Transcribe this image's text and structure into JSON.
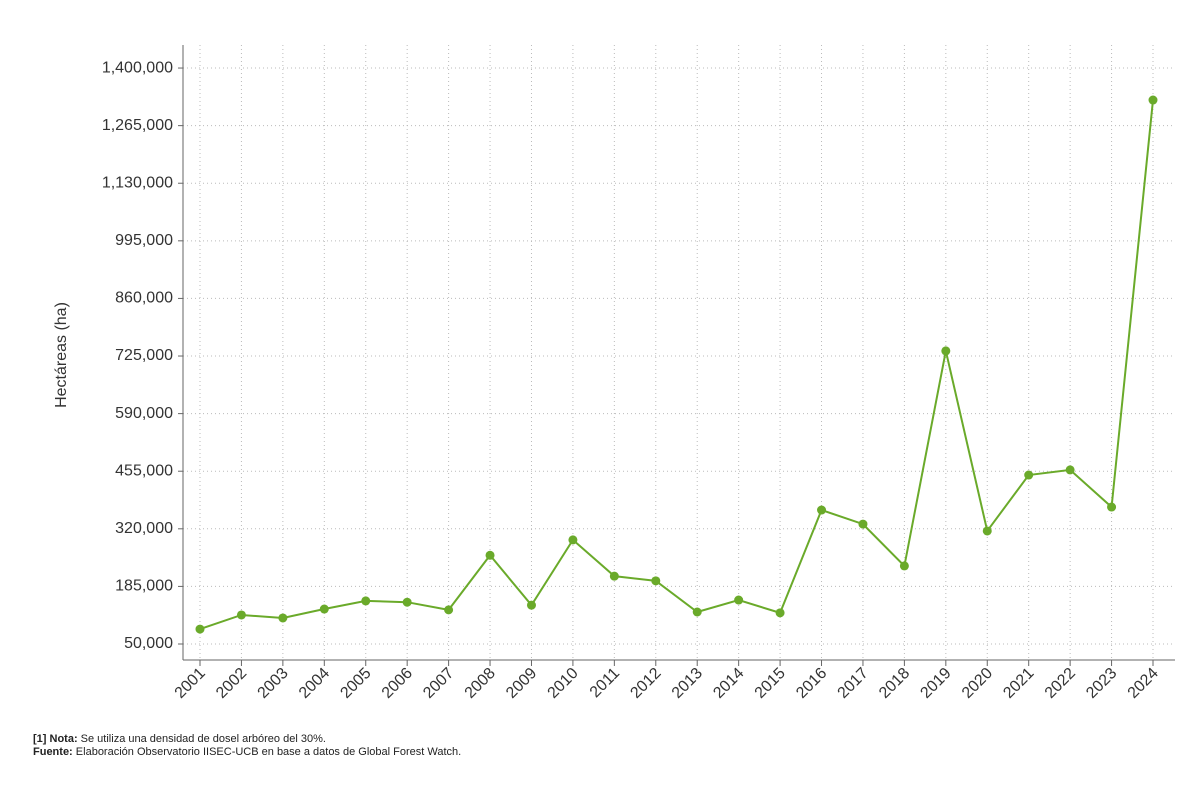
{
  "chart_data": {
    "type": "line",
    "y_label": "Hectáreas (ha)",
    "categories": [
      "2001",
      "2002",
      "2003",
      "2004",
      "2005",
      "2006",
      "2007",
      "2008",
      "2009",
      "2010",
      "2011",
      "2012",
      "2013",
      "2014",
      "2015",
      "2016",
      "2017",
      "2018",
      "2019",
      "2020",
      "2021",
      "2022",
      "2023",
      "2024"
    ],
    "series": [
      {
        "color": "#6aaa2a",
        "values": [
          85000,
          118000,
          111000,
          132000,
          151000,
          148000,
          130000,
          258000,
          141000,
          294000,
          209000,
          198000,
          125000,
          153000,
          123000,
          364000,
          331000,
          233000,
          737000,
          315000,
          446000,
          458000,
          371000,
          1325000
        ]
      }
    ],
    "ylim": [
      12500,
      1454000
    ],
    "yticks": [
      {
        "value": 50000,
        "label": "50,000"
      },
      {
        "value": 185000,
        "label": "185,000"
      },
      {
        "value": 320000,
        "label": "320,000"
      },
      {
        "value": 455000,
        "label": "455,000"
      },
      {
        "value": 590000,
        "label": "590,000"
      },
      {
        "value": 725000,
        "label": "725,000"
      },
      {
        "value": 860000,
        "label": "860,000"
      },
      {
        "value": 995000,
        "label": "995,000"
      },
      {
        "value": 1130000,
        "label": "1,130,000"
      },
      {
        "value": 1265000,
        "label": "1,265,000"
      },
      {
        "value": 1400000,
        "label": "1,400,000"
      }
    ],
    "grid": true,
    "note_label": "[1] Nota:",
    "note_text": "Se utiliza una densidad de dosel arbóreo del 30%.",
    "source_label": "Fuente:",
    "source_text": "Elaboración Observatorio IISEC-UCB en base a datos de Global Forest Watch."
  }
}
